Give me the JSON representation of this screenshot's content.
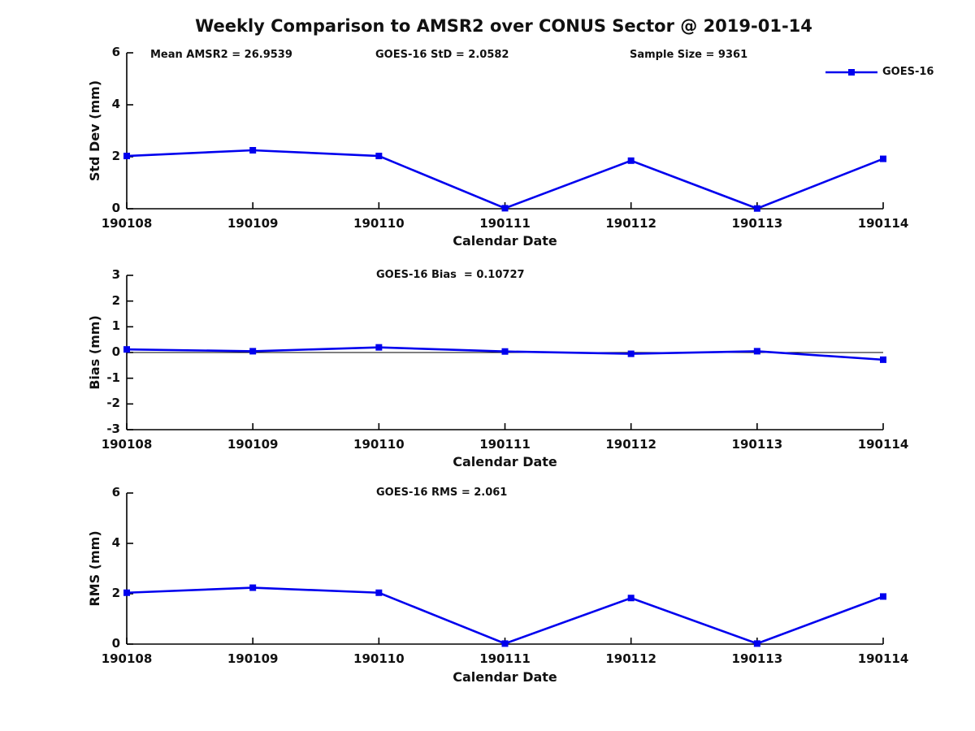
{
  "page": {
    "title": "Weekly Comparison to AMSR2 over CONUS Sector @ 2019-01-14"
  },
  "colors": {
    "line": "#0000EE",
    "marker_fill": "#0000EE",
    "axis": "#000000",
    "zero_line": "#000000",
    "text": "#111111",
    "background": "#ffffff"
  },
  "legend": {
    "label": "GOES-16",
    "position": "top-right",
    "marker": "filled-square"
  },
  "chart_data": [
    {
      "type": "line",
      "ylabel": "Std Dev (mm)",
      "xlabel": "Calendar Date",
      "categories": [
        "190108",
        "190109",
        "190110",
        "190111",
        "190112",
        "190113",
        "190114"
      ],
      "series": [
        {
          "name": "GOES-16",
          "color": "#0000EE",
          "marker": "square",
          "values": [
            2.03,
            2.25,
            2.03,
            0.02,
            1.85,
            0.01,
            1.92
          ]
        }
      ],
      "ylim": [
        0,
        6
      ],
      "yticks": [
        0,
        2,
        4,
        6
      ],
      "grid": false,
      "zero_line": false,
      "legend_position": "top-right",
      "annotations": [
        "Mean AMSR2 = 26.9539",
        "GOES-16 StD = 2.0582",
        "Sample Size = 9361"
      ]
    },
    {
      "type": "line",
      "ylabel": "Bias (mm)",
      "xlabel": "Calendar Date",
      "categories": [
        "190108",
        "190109",
        "190110",
        "190111",
        "190112",
        "190113",
        "190114"
      ],
      "series": [
        {
          "name": "GOES-16",
          "color": "#0000EE",
          "marker": "square",
          "values": [
            0.12,
            0.05,
            0.2,
            0.04,
            -0.05,
            0.05,
            -0.28
          ]
        }
      ],
      "ylim": [
        -3,
        3
      ],
      "yticks": [
        -3,
        -2,
        -1,
        0,
        1,
        2,
        3
      ],
      "grid": false,
      "zero_line": true,
      "annotations": [
        "GOES-16 Bias  = 0.10727"
      ]
    },
    {
      "type": "line",
      "ylabel": "RMS (mm)",
      "xlabel": "Calendar Date",
      "categories": [
        "190108",
        "190109",
        "190110",
        "190111",
        "190112",
        "190113",
        "190114"
      ],
      "series": [
        {
          "name": "GOES-16",
          "color": "#0000EE",
          "marker": "square",
          "values": [
            2.04,
            2.24,
            2.04,
            0.02,
            1.83,
            0.02,
            1.89
          ]
        }
      ],
      "ylim": [
        0,
        6
      ],
      "yticks": [
        0,
        2,
        4,
        6
      ],
      "grid": false,
      "zero_line": false,
      "annotations": [
        "GOES-16 RMS = 2.061"
      ]
    }
  ]
}
